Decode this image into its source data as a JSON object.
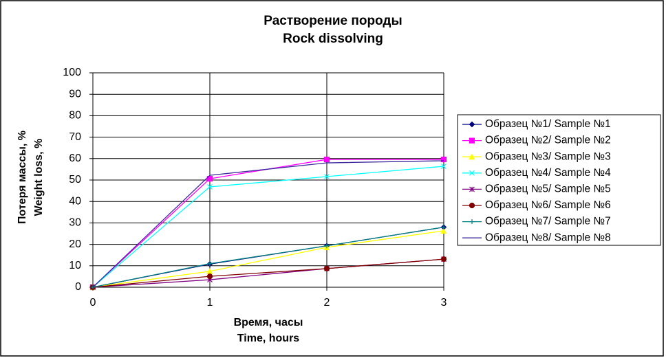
{
  "chart_data": {
    "type": "line",
    "title": [
      "Растворение породы",
      "Rock dissolving"
    ],
    "x_label": [
      "Время, часы",
      "Time, hours"
    ],
    "y_label": [
      "Потеря массы, %",
      "Weight loss, %"
    ],
    "x": [
      0,
      1,
      2,
      3
    ],
    "xlim": [
      0,
      3
    ],
    "xticks": [
      0,
      1,
      2,
      3
    ],
    "ylim": [
      0,
      100
    ],
    "yticks": [
      0,
      10,
      20,
      30,
      40,
      50,
      60,
      70,
      80,
      90,
      100
    ],
    "grid": true,
    "legend": "right",
    "series": [
      {
        "name": "Образец №1/ Sample №1",
        "color": "#000080",
        "marker": "diamond",
        "values": [
          0,
          10.8,
          19.3,
          28
        ]
      },
      {
        "name": "Образец №2/ Sample №2",
        "color": "#ff00ff",
        "marker": "square",
        "values": [
          0,
          50.6,
          59.6,
          59.6
        ]
      },
      {
        "name": "Образец №3/ Sample №3",
        "color": "#ffff00",
        "marker": "triangle",
        "values": [
          0,
          7.4,
          18.6,
          26.3
        ]
      },
      {
        "name": "Образец №4/ Sample №4",
        "color": "#00ffff",
        "marker": "x",
        "values": [
          0,
          46.8,
          51.6,
          56.4
        ]
      },
      {
        "name": "Образец №5/ Sample №5",
        "color": "#800080",
        "marker": "star",
        "values": [
          0,
          3.5,
          8.7,
          13.1
        ]
      },
      {
        "name": "Образец №6/ Sample №6",
        "color": "#800000",
        "marker": "circle",
        "values": [
          0,
          5.1,
          8.7,
          13.1
        ]
      },
      {
        "name": "Образец №7/ Sample №7",
        "color": "#008080",
        "marker": "plus",
        "values": [
          0,
          11,
          19.3,
          28
        ]
      },
      {
        "name": "Образец №8/ Sample №8",
        "color": "#3c2a9c",
        "marker": "none",
        "values": [
          0,
          52.2,
          58,
          59
        ]
      }
    ]
  }
}
